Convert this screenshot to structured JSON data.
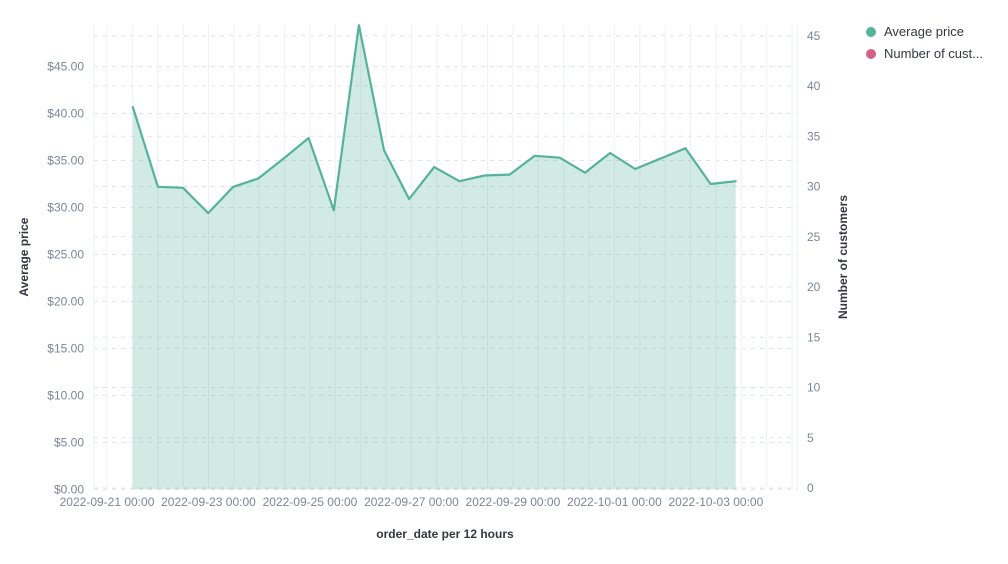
{
  "legend": {
    "items": [
      {
        "label": "Average price",
        "color": "#54b399"
      },
      {
        "label": "Number of cust...",
        "color": "#d36086"
      }
    ]
  },
  "chart_data": {
    "type": "area",
    "title": "",
    "xlabel": "order_date per 12 hours",
    "ylabel_left": "Average price",
    "ylabel_right": "Number of customers",
    "legend_position": "top-right",
    "grid": true,
    "x_interval": "12 hours",
    "ylim_left": [
      0,
      49.4
    ],
    "ylim_right": [
      0,
      46
    ],
    "y_left_tick_labels": [
      "$0.00",
      "$5.00",
      "$10.00",
      "$15.00",
      "$20.00",
      "$25.00",
      "$30.00",
      "$35.00",
      "$40.00",
      "$45.00"
    ],
    "y_right_tick_labels": [
      "0",
      "5",
      "10",
      "15",
      "20",
      "25",
      "30",
      "35",
      "40",
      "45"
    ],
    "x_tick_labels": [
      "2022-09-21 00:00",
      "2022-09-23 00:00",
      "2022-09-25 00:00",
      "2022-09-27 00:00",
      "2022-09-29 00:00",
      "2022-10-01 00:00",
      "2022-10-03 00:00"
    ],
    "x": [
      "2022-09-21 12:00",
      "2022-09-22 00:00",
      "2022-09-22 12:00",
      "2022-09-23 00:00",
      "2022-09-23 12:00",
      "2022-09-24 00:00",
      "2022-09-24 12:00",
      "2022-09-25 00:00",
      "2022-09-25 12:00",
      "2022-09-26 00:00",
      "2022-09-26 12:00",
      "2022-09-27 00:00",
      "2022-09-27 12:00",
      "2022-09-28 00:00",
      "2022-09-28 12:00",
      "2022-09-29 00:00",
      "2022-09-29 12:00",
      "2022-09-30 00:00",
      "2022-09-30 12:00",
      "2022-10-01 00:00",
      "2022-10-01 12:00",
      "2022-10-02 00:00",
      "2022-10-02 12:00",
      "2022-10-03 00:00",
      "2022-10-03 12:00"
    ],
    "series": [
      {
        "name": "Average price",
        "axis": "left",
        "color": "#54b399",
        "fill_opacity": 0.27,
        "values": [
          40.7,
          32.2,
          32.1,
          29.4,
          32.2,
          33.1,
          35.2,
          37.4,
          29.7,
          49.4,
          36.1,
          30.9,
          34.3,
          32.8,
          33.4,
          33.5,
          35.5,
          35.3,
          33.7,
          35.8,
          34.1,
          35.2,
          36.3,
          32.5,
          32.8
        ]
      },
      {
        "name": "Number of cust...",
        "axis": "right",
        "color": "#d36086",
        "values": []
      }
    ]
  }
}
